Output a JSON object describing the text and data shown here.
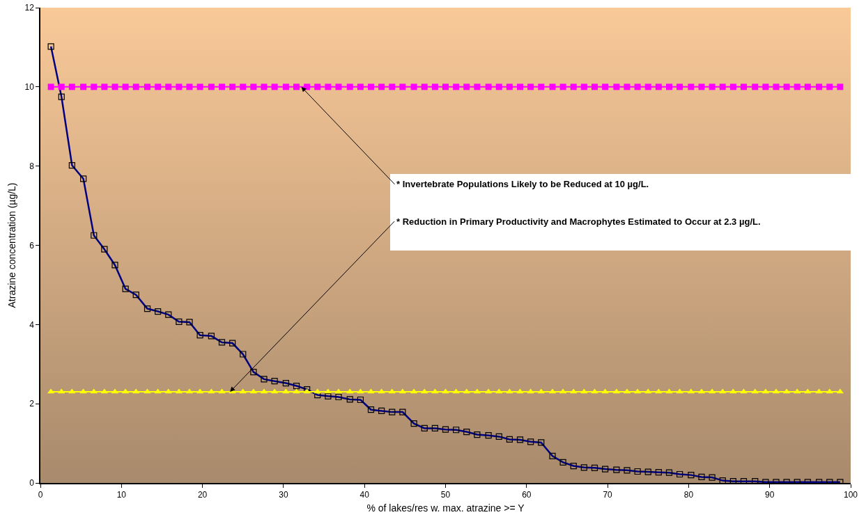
{
  "chart_data": {
    "type": "line",
    "xlabel": "% of lakes/res w. max. atrazine >= Y",
    "ylabel": "Atrazine concentration (µg/L)",
    "x": [
      1.3,
      2.6,
      3.9,
      5.3,
      6.6,
      7.9,
      9.2,
      10.5,
      11.8,
      13.2,
      14.5,
      15.8,
      17.1,
      18.4,
      19.7,
      21.1,
      22.4,
      23.7,
      25.0,
      26.3,
      27.6,
      28.9,
      30.3,
      31.6,
      32.9,
      34.2,
      35.5,
      36.8,
      38.2,
      39.5,
      40.8,
      42.1,
      43.4,
      44.7,
      46.1,
      47.4,
      48.7,
      50.0,
      51.3,
      52.6,
      53.9,
      55.3,
      56.6,
      57.9,
      59.2,
      60.5,
      61.8,
      63.2,
      64.5,
      65.8,
      67.1,
      68.4,
      69.7,
      71.1,
      72.4,
      73.7,
      75.0,
      76.3,
      77.6,
      78.9,
      80.3,
      81.6,
      82.9,
      84.2,
      85.5,
      86.8,
      88.2,
      89.5,
      90.8,
      92.1,
      93.4,
      94.7,
      96.1,
      97.4,
      98.7
    ],
    "series": [
      {
        "color": "#000080",
        "marker": "square",
        "values": [
          11.02,
          9.75,
          8.02,
          7.68,
          6.25,
          5.9,
          5.5,
          4.9,
          4.75,
          4.4,
          4.33,
          4.25,
          4.07,
          4.06,
          3.73,
          3.71,
          3.55,
          3.53,
          3.25,
          2.8,
          2.62,
          2.57,
          2.52,
          2.45,
          2.36,
          2.22,
          2.19,
          2.17,
          2.11,
          2.1,
          1.85,
          1.82,
          1.79,
          1.79,
          1.5,
          1.38,
          1.38,
          1.35,
          1.34,
          1.29,
          1.22,
          1.2,
          1.17,
          1.1,
          1.09,
          1.04,
          1.02,
          0.68,
          0.52,
          0.43,
          0.39,
          0.38,
          0.35,
          0.33,
          0.32,
          0.29,
          0.28,
          0.27,
          0.26,
          0.22,
          0.2,
          0.15,
          0.14,
          0.06,
          0.04,
          0.04,
          0.04,
          0.02,
          0.02,
          0.02,
          0.02,
          0.02,
          0.02,
          0.02,
          0.02
        ]
      },
      {
        "color": "#ff00ff",
        "marker": "square",
        "values": [
          10,
          10,
          10,
          10,
          10,
          10,
          10,
          10,
          10,
          10,
          10,
          10,
          10,
          10,
          10,
          10,
          10,
          10,
          10,
          10,
          10,
          10,
          10,
          10,
          10,
          10,
          10,
          10,
          10,
          10,
          10,
          10,
          10,
          10,
          10,
          10,
          10,
          10,
          10,
          10,
          10,
          10,
          10,
          10,
          10,
          10,
          10,
          10,
          10,
          10,
          10,
          10,
          10,
          10,
          10,
          10,
          10,
          10,
          10,
          10,
          10,
          10,
          10,
          10,
          10,
          10,
          10,
          10,
          10,
          10,
          10,
          10,
          10,
          10,
          10
        ]
      },
      {
        "color": "#ffff00",
        "marker": "triangle",
        "values": [
          2.3,
          2.3,
          2.3,
          2.3,
          2.3,
          2.3,
          2.3,
          2.3,
          2.3,
          2.3,
          2.3,
          2.3,
          2.3,
          2.3,
          2.3,
          2.3,
          2.3,
          2.3,
          2.3,
          2.3,
          2.3,
          2.3,
          2.3,
          2.3,
          2.3,
          2.3,
          2.3,
          2.3,
          2.3,
          2.3,
          2.3,
          2.3,
          2.3,
          2.3,
          2.3,
          2.3,
          2.3,
          2.3,
          2.3,
          2.3,
          2.3,
          2.3,
          2.3,
          2.3,
          2.3,
          2.3,
          2.3,
          2.3,
          2.3,
          2.3,
          2.3,
          2.3,
          2.3,
          2.3,
          2.3,
          2.3,
          2.3,
          2.3,
          2.3,
          2.3,
          2.3,
          2.3,
          2.3,
          2.3,
          2.3,
          2.3,
          2.3,
          2.3,
          2.3,
          2.3,
          2.3,
          2.3,
          2.3,
          2.3,
          2.3
        ]
      }
    ],
    "annotations": [
      {
        "text": "* Invertebrate Populations Likely to be Reduced at 10 µg/L.",
        "x": 32.2,
        "y": 10
      },
      {
        "text": "* Reduction in Primary Productivity and Macrophytes Estimated to Occur at 2.3 µg/L.",
        "x": 23.4,
        "y": 2.3
      }
    ],
    "xlim": [
      0,
      100
    ],
    "xticks": [
      0,
      10,
      20,
      30,
      40,
      50,
      60,
      70,
      80,
      90,
      100
    ],
    "ylim": [
      0,
      12
    ],
    "yticks": [
      0,
      2,
      4,
      6,
      8,
      10,
      12
    ],
    "grid": false,
    "line_style": "solid"
  }
}
